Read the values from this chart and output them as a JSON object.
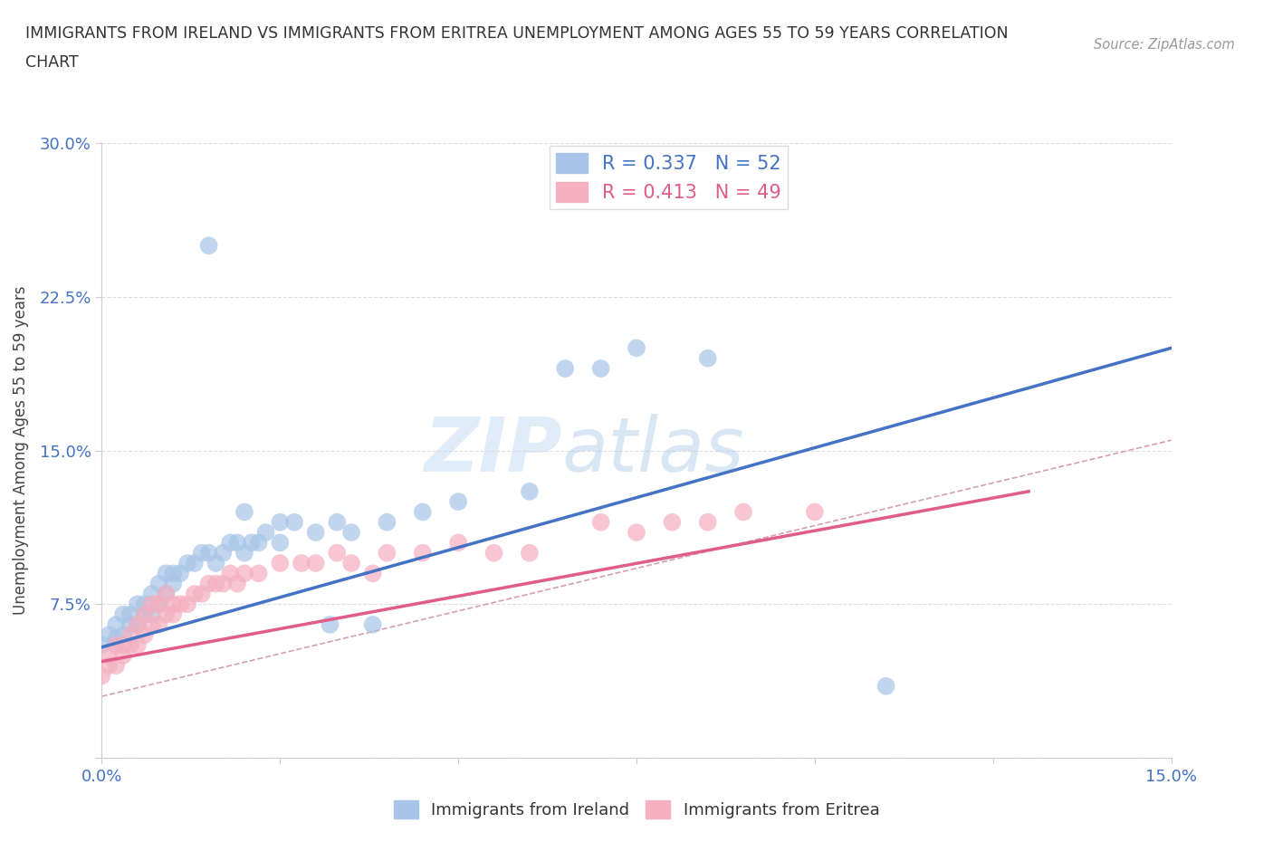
{
  "title_line1": "IMMIGRANTS FROM IRELAND VS IMMIGRANTS FROM ERITREA UNEMPLOYMENT AMONG AGES 55 TO 59 YEARS CORRELATION",
  "title_line2": "CHART",
  "source": "Source: ZipAtlas.com",
  "ylabel": "Unemployment Among Ages 55 to 59 years",
  "xlim": [
    0.0,
    0.15
  ],
  "ylim": [
    0.0,
    0.3
  ],
  "xticks": [
    0.0,
    0.025,
    0.05,
    0.075,
    0.1,
    0.125,
    0.15
  ],
  "xticklabels": [
    "0.0%",
    "",
    "",
    "",
    "",
    "",
    "15.0%"
  ],
  "yticks": [
    0.0,
    0.075,
    0.15,
    0.225,
    0.3
  ],
  "yticklabels": [
    "",
    "7.5%",
    "15.0%",
    "22.5%",
    "30.0%"
  ],
  "ireland_R": 0.337,
  "ireland_N": 52,
  "eritrea_R": 0.413,
  "eritrea_N": 49,
  "ireland_color": "#a8c4e8",
  "eritrea_color": "#f4afc0",
  "ireland_line_color": "#4472c4",
  "eritrea_line_color": "#e05c8a",
  "legend_ireland_label": "Immigrants from Ireland",
  "legend_eritrea_label": "Immigrants from Eritrea",
  "watermark_left": "ZIP",
  "watermark_right": "atlas",
  "ireland_scatter_x": [
    0.0,
    0.001,
    0.002,
    0.002,
    0.003,
    0.003,
    0.004,
    0.004,
    0.005,
    0.005,
    0.006,
    0.006,
    0.007,
    0.007,
    0.008,
    0.008,
    0.009,
    0.009,
    0.01,
    0.01,
    0.011,
    0.012,
    0.013,
    0.014,
    0.015,
    0.016,
    0.017,
    0.018,
    0.019,
    0.02,
    0.021,
    0.022,
    0.023,
    0.025,
    0.027,
    0.03,
    0.033,
    0.035,
    0.04,
    0.045,
    0.05,
    0.06,
    0.065,
    0.07,
    0.075,
    0.085,
    0.032,
    0.038,
    0.025,
    0.02,
    0.015,
    0.11
  ],
  "ireland_scatter_y": [
    0.055,
    0.06,
    0.058,
    0.065,
    0.06,
    0.07,
    0.065,
    0.07,
    0.065,
    0.075,
    0.07,
    0.075,
    0.07,
    0.08,
    0.075,
    0.085,
    0.08,
    0.09,
    0.085,
    0.09,
    0.09,
    0.095,
    0.095,
    0.1,
    0.1,
    0.095,
    0.1,
    0.105,
    0.105,
    0.1,
    0.105,
    0.105,
    0.11,
    0.105,
    0.115,
    0.11,
    0.115,
    0.11,
    0.115,
    0.12,
    0.125,
    0.13,
    0.19,
    0.19,
    0.2,
    0.195,
    0.065,
    0.065,
    0.115,
    0.12,
    0.25,
    0.035
  ],
  "eritrea_scatter_x": [
    0.0,
    0.001,
    0.001,
    0.002,
    0.002,
    0.003,
    0.003,
    0.004,
    0.004,
    0.005,
    0.005,
    0.006,
    0.006,
    0.007,
    0.007,
    0.008,
    0.008,
    0.009,
    0.009,
    0.01,
    0.01,
    0.011,
    0.012,
    0.013,
    0.014,
    0.015,
    0.016,
    0.017,
    0.018,
    0.019,
    0.02,
    0.022,
    0.025,
    0.028,
    0.03,
    0.033,
    0.035,
    0.038,
    0.04,
    0.045,
    0.05,
    0.055,
    0.06,
    0.07,
    0.075,
    0.08,
    0.085,
    0.09,
    0.1
  ],
  "eritrea_scatter_y": [
    0.04,
    0.045,
    0.05,
    0.045,
    0.055,
    0.05,
    0.055,
    0.055,
    0.06,
    0.055,
    0.065,
    0.06,
    0.07,
    0.065,
    0.075,
    0.065,
    0.075,
    0.07,
    0.08,
    0.07,
    0.075,
    0.075,
    0.075,
    0.08,
    0.08,
    0.085,
    0.085,
    0.085,
    0.09,
    0.085,
    0.09,
    0.09,
    0.095,
    0.095,
    0.095,
    0.1,
    0.095,
    0.09,
    0.1,
    0.1,
    0.105,
    0.1,
    0.1,
    0.115,
    0.11,
    0.115,
    0.115,
    0.12,
    0.12
  ],
  "ireland_trend_x0": 0.0,
  "ireland_trend_y0": 0.054,
  "ireland_trend_x1": 0.15,
  "ireland_trend_y1": 0.2,
  "eritrea_trend_x0": 0.0,
  "eritrea_trend_y0": 0.047,
  "eritrea_trend_x1": 0.13,
  "eritrea_trend_y1": 0.13,
  "ref_line_x0": 0.0,
  "ref_line_y0": 0.03,
  "ref_line_x1": 0.15,
  "ref_line_y1": 0.155,
  "grid_color": "#dddddd",
  "background_color": "#ffffff"
}
